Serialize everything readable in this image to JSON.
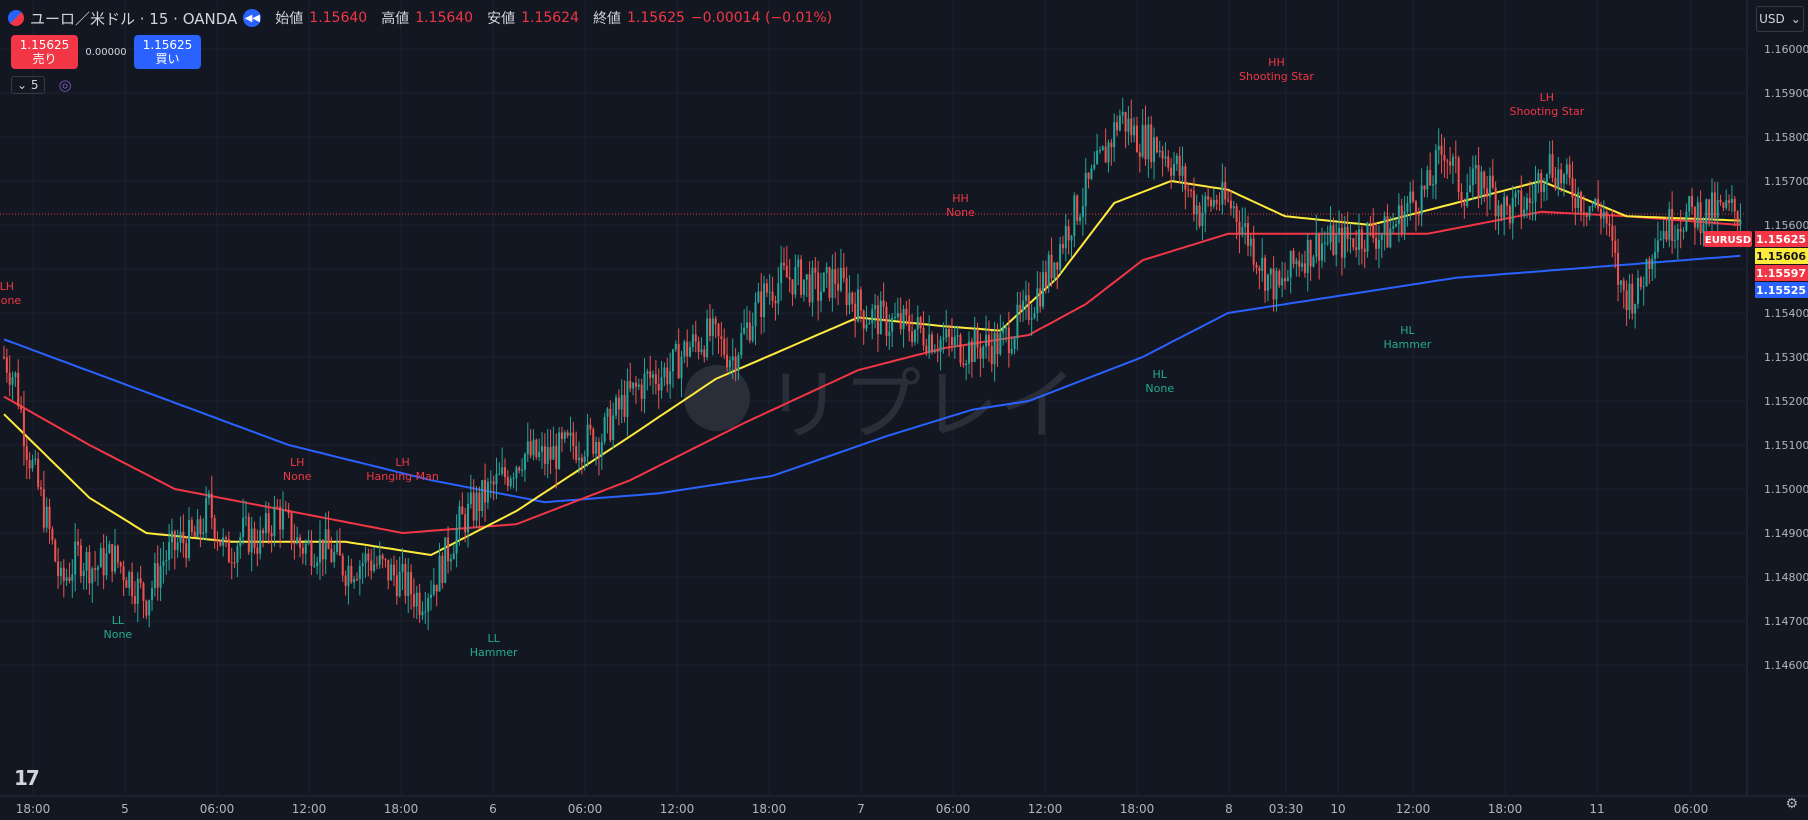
{
  "header": {
    "symbol": "ユーロ／米ドル · 15 · OANDA",
    "open_label": "始値",
    "open_value": "1.15640",
    "high_label": "高値",
    "high_value": "1.15640",
    "low_label": "安値",
    "low_value": "1.15624",
    "close_label": "終値",
    "close_value": "1.15625",
    "change": "−0.00014 (−0.01%)"
  },
  "trade": {
    "sell_price": "1.15625",
    "sell_label": "売り",
    "spread": "0.00000",
    "buy_price": "1.15625",
    "buy_label": "買い"
  },
  "interval": "5",
  "currency": "USD",
  "watermark": "リプレイ",
  "colors": {
    "up": "#26a69a",
    "down": "#ef5350",
    "ma_fast": "#ffeb3b",
    "ma_mid": "#f23645",
    "ma_slow": "#2962ff",
    "bg": "#131722",
    "grid": "#1e222d"
  },
  "chart_data": {
    "type": "candlestick",
    "ylim": [
      1.1455,
      1.161
    ],
    "yticks": [
      "1.16000",
      "1.15900",
      "1.15800",
      "1.15700",
      "1.15600",
      "1.15500",
      "1.15400",
      "1.15300",
      "1.15200",
      "1.15100",
      "1.15000",
      "1.14900",
      "1.14800",
      "1.14700",
      "1.14600"
    ],
    "xticks": [
      "18:00",
      "5",
      "06:00",
      "12:00",
      "18:00",
      "6",
      "06:00",
      "12:00",
      "18:00",
      "7",
      "06:00",
      "12:00",
      "18:00",
      "8",
      "03:30",
      "10",
      "12:00",
      "18:00",
      "11",
      "06:00"
    ],
    "close_path": [
      [
        0,
        1.153
      ],
      [
        4,
        1.1525
      ],
      [
        8,
        1.151
      ],
      [
        12,
        1.15
      ],
      [
        16,
        1.149
      ],
      [
        20,
        1.1478
      ],
      [
        26,
        1.1485
      ],
      [
        32,
        1.1482
      ],
      [
        38,
        1.1485
      ],
      [
        44,
        1.148
      ],
      [
        50,
        1.1475
      ],
      [
        56,
        1.1484
      ],
      [
        62,
        1.1488
      ],
      [
        68,
        1.1489
      ],
      [
        72,
        1.1496
      ],
      [
        78,
        1.1485
      ],
      [
        84,
        1.149
      ],
      [
        90,
        1.1488
      ],
      [
        96,
        1.1495
      ],
      [
        104,
        1.1487
      ],
      [
        112,
        1.1487
      ],
      [
        120,
        1.1482
      ],
      [
        128,
        1.1484
      ],
      [
        138,
        1.148
      ],
      [
        146,
        1.1475
      ],
      [
        152,
        1.148
      ],
      [
        160,
        1.1492
      ],
      [
        168,
        1.1498
      ],
      [
        176,
        1.1503
      ],
      [
        182,
        1.1508
      ],
      [
        190,
        1.1507
      ],
      [
        200,
        1.151
      ],
      [
        210,
        1.1512
      ],
      [
        218,
        1.152
      ],
      [
        226,
        1.1525
      ],
      [
        234,
        1.1527
      ],
      [
        240,
        1.1532
      ],
      [
        248,
        1.1535
      ],
      [
        256,
        1.153
      ],
      [
        262,
        1.1538
      ],
      [
        268,
        1.1545
      ],
      [
        274,
        1.1548
      ],
      [
        280,
        1.1548
      ],
      [
        286,
        1.1545
      ],
      [
        292,
        1.1548
      ],
      [
        296,
        1.1545
      ],
      [
        302,
        1.154
      ],
      [
        310,
        1.1538
      ],
      [
        318,
        1.1537
      ],
      [
        328,
        1.1534
      ],
      [
        338,
        1.1532
      ],
      [
        350,
        1.1533
      ],
      [
        358,
        1.1539
      ],
      [
        366,
        1.1548
      ],
      [
        374,
        1.156
      ],
      [
        382,
        1.157
      ],
      [
        388,
        1.1578
      ],
      [
        392,
        1.1585
      ],
      [
        398,
        1.158
      ],
      [
        406,
        1.1578
      ],
      [
        412,
        1.1573
      ],
      [
        420,
        1.1563
      ],
      [
        426,
        1.1566
      ],
      [
        432,
        1.1564
      ],
      [
        438,
        1.1556
      ],
      [
        444,
        1.1548
      ],
      [
        448,
        1.1545
      ],
      [
        454,
        1.1552
      ],
      [
        462,
        1.1556
      ],
      [
        470,
        1.1556
      ],
      [
        478,
        1.1558
      ],
      [
        486,
        1.1558
      ],
      [
        494,
        1.1565
      ],
      [
        500,
        1.1568
      ],
      [
        506,
        1.1578
      ],
      [
        512,
        1.1568
      ],
      [
        520,
        1.157
      ],
      [
        528,
        1.1563
      ],
      [
        536,
        1.1565
      ],
      [
        542,
        1.1575
      ],
      [
        548,
        1.157
      ],
      [
        556,
        1.1565
      ],
      [
        562,
        1.1563
      ],
      [
        568,
        1.1545
      ],
      [
        574,
        1.1544
      ],
      [
        580,
        1.1558
      ],
      [
        590,
        1.1562
      ],
      [
        600,
        1.1563
      ],
      [
        610,
        1.1563
      ]
    ],
    "ma_fast": [
      [
        0,
        1.1517
      ],
      [
        30,
        1.1498
      ],
      [
        50,
        1.149
      ],
      [
        80,
        1.1488
      ],
      [
        120,
        1.1488
      ],
      [
        150,
        1.1485
      ],
      [
        180,
        1.1495
      ],
      [
        220,
        1.1512
      ],
      [
        250,
        1.1525
      ],
      [
        275,
        1.1532
      ],
      [
        300,
        1.1539
      ],
      [
        330,
        1.1537
      ],
      [
        350,
        1.1536
      ],
      [
        370,
        1.1548
      ],
      [
        390,
        1.1565
      ],
      [
        410,
        1.157
      ],
      [
        430,
        1.1568
      ],
      [
        450,
        1.1562
      ],
      [
        480,
        1.156
      ],
      [
        510,
        1.1565
      ],
      [
        540,
        1.157
      ],
      [
        570,
        1.1562
      ],
      [
        610,
        1.1561
      ]
    ],
    "ma_mid": [
      [
        0,
        1.1521
      ],
      [
        30,
        1.151
      ],
      [
        60,
        1.15
      ],
      [
        100,
        1.1495
      ],
      [
        140,
        1.149
      ],
      [
        180,
        1.1492
      ],
      [
        220,
        1.1502
      ],
      [
        260,
        1.1515
      ],
      [
        300,
        1.1527
      ],
      [
        330,
        1.1532
      ],
      [
        360,
        1.1535
      ],
      [
        380,
        1.1542
      ],
      [
        400,
        1.1552
      ],
      [
        430,
        1.1558
      ],
      [
        460,
        1.1558
      ],
      [
        500,
        1.1558
      ],
      [
        540,
        1.1563
      ],
      [
        570,
        1.1562
      ],
      [
        610,
        1.156
      ]
    ],
    "ma_slow": [
      [
        0,
        1.1534
      ],
      [
        50,
        1.1522
      ],
      [
        100,
        1.151
      ],
      [
        150,
        1.1502
      ],
      [
        190,
        1.1497
      ],
      [
        230,
        1.1499
      ],
      [
        270,
        1.1503
      ],
      [
        310,
        1.1512
      ],
      [
        340,
        1.1518
      ],
      [
        360,
        1.152
      ],
      [
        400,
        1.153
      ],
      [
        430,
        1.154
      ],
      [
        470,
        1.1544
      ],
      [
        510,
        1.1548
      ],
      [
        550,
        1.155
      ],
      [
        610,
        1.1553
      ]
    ],
    "annotations": [
      {
        "label": "LH",
        "sub": "None",
        "i": 1,
        "price": 1.1542,
        "kind": "high"
      },
      {
        "label": "LL",
        "sub": "None",
        "i": 40,
        "price": 1.1472,
        "kind": "low"
      },
      {
        "label": "LH",
        "sub": "None",
        "i": 103,
        "price": 1.1502,
        "kind": "high"
      },
      {
        "label": "LH",
        "sub": "Hanging Man",
        "i": 140,
        "price": 1.1502,
        "kind": "high"
      },
      {
        "label": "LL",
        "sub": "Hammer",
        "i": 172,
        "price": 1.1468,
        "kind": "low"
      },
      {
        "label": "HH",
        "sub": "None",
        "i": 336,
        "price": 1.1562,
        "kind": "high"
      },
      {
        "label": "HL",
        "sub": "None",
        "i": 406,
        "price": 1.1528,
        "kind": "low"
      },
      {
        "label": "HH",
        "sub": "Shooting Star",
        "i": 447,
        "price": 1.1593,
        "kind": "high"
      },
      {
        "label": "HL",
        "sub": "Hammer",
        "i": 493,
        "price": 1.1538,
        "kind": "low"
      },
      {
        "label": "LH",
        "sub": "Shooting Star",
        "i": 542,
        "price": 1.1585,
        "kind": "high"
      }
    ],
    "price_labels": [
      {
        "name": "EURUSD",
        "value": "1.15625",
        "color": "#f23645"
      },
      {
        "value": "1.15606",
        "color": "#ffeb3b"
      },
      {
        "value": "1.15597",
        "color": "#f23645"
      },
      {
        "value": "1.15525",
        "color": "#2962ff"
      }
    ]
  }
}
